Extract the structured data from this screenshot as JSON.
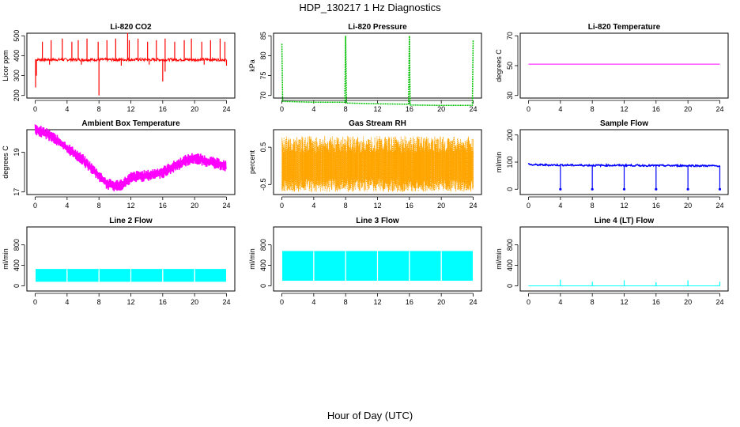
{
  "title": "HDP_130217  1 Hz Diagnostics",
  "xlabel": "Hour of Day (UTC)",
  "colors": {
    "red": "#ff0000",
    "green": "#00c000",
    "magenta": "#ff00ff",
    "orange": "#ffa500",
    "blue": "#0000ff",
    "cyan": "#00ffff"
  },
  "chart_data": [
    {
      "type": "line",
      "title": "Li-820 CO2",
      "ylabel": "Licor ppm",
      "xlim": [
        0,
        24
      ],
      "ylim": [
        200,
        500
      ],
      "xticks": [
        0,
        4,
        8,
        12,
        16,
        20,
        24
      ],
      "yticks": [
        200,
        300,
        400,
        500
      ],
      "color": "#ff0000",
      "style": "co2",
      "series": [
        {
          "x": [
            0,
            0.1,
            0.2,
            1,
            2,
            3,
            4,
            5,
            6,
            7,
            8,
            9,
            10,
            11,
            11.6,
            12,
            13,
            14,
            15,
            16,
            17,
            18,
            19,
            20,
            21,
            22,
            23,
            23.9,
            24
          ],
          "y": [
            380,
            230,
            380,
            380,
            385,
            380,
            382,
            380,
            383,
            380,
            380,
            381,
            382,
            380,
            515,
            380,
            381,
            380,
            382,
            380,
            381,
            380,
            382,
            380,
            381,
            380,
            382,
            370,
            380
          ]
        }
      ]
    },
    {
      "type": "line",
      "title": "Li-820 Pressure",
      "ylabel": "kPa",
      "xlim": [
        0,
        24
      ],
      "ylim": [
        70,
        85
      ],
      "xticks": [
        0,
        4,
        8,
        12,
        16,
        20,
        24
      ],
      "yticks": [
        70,
        75,
        80,
        85
      ],
      "color": "#00c000",
      "style": "pressure",
      "series": [
        {
          "x": [
            0,
            0.1,
            4,
            7.9,
            8.0,
            8.1,
            12,
            15.9,
            16.0,
            16.1,
            20,
            23.9,
            24
          ],
          "y": [
            83,
            68.5,
            68.3,
            68.3,
            85,
            68.1,
            67.9,
            67.8,
            85,
            67.6,
            67.5,
            67.5,
            84
          ]
        }
      ]
    },
    {
      "type": "line",
      "title": "Li-820 Temperature",
      "ylabel": "degrees C",
      "xlim": [
        0,
        24
      ],
      "ylim": [
        30,
        70
      ],
      "xticks": [
        0,
        4,
        8,
        12,
        16,
        20,
        24
      ],
      "yticks": [
        30,
        50,
        70
      ],
      "color": "#ff00ff",
      "style": "line",
      "series": [
        {
          "x": [
            0,
            24
          ],
          "y": [
            51,
            51
          ]
        }
      ]
    },
    {
      "type": "line",
      "title": "Ambient Box Temperature",
      "ylabel": "degrees C",
      "xlim": [
        0,
        24
      ],
      "ylim": [
        17,
        20
      ],
      "xticks": [
        0,
        4,
        8,
        12,
        16,
        20,
        24
      ],
      "yticks": [
        17,
        19
      ],
      "color": "#ff00ff",
      "style": "band",
      "band": 0.3,
      "series": [
        {
          "x": [
            0,
            1,
            2,
            3,
            4,
            5,
            6,
            7,
            8,
            9,
            10,
            11,
            12,
            13,
            14,
            15,
            16,
            17,
            18,
            19,
            20,
            21,
            22,
            23,
            24
          ],
          "y": [
            20.1,
            20.0,
            19.8,
            19.5,
            19.2,
            18.9,
            18.6,
            18.2,
            17.8,
            17.4,
            17.3,
            17.4,
            17.7,
            17.8,
            17.8,
            17.9,
            18.0,
            18.2,
            18.4,
            18.6,
            18.7,
            18.6,
            18.5,
            18.4,
            18.3
          ]
        }
      ]
    },
    {
      "type": "line",
      "title": "Gas Stream RH",
      "ylabel": "percent",
      "xlim": [
        0,
        24
      ],
      "ylim": [
        -0.7,
        0.9
      ],
      "xticks": [
        0,
        4,
        8,
        12,
        16,
        20,
        24
      ],
      "yticks": [
        -0.5,
        0.5
      ],
      "color": "#ffa500",
      "style": "noise",
      "series": [
        {
          "x": [
            0,
            24
          ],
          "y": [
            -0.7,
            0.8
          ]
        }
      ]
    },
    {
      "type": "line",
      "title": "Sample Flow",
      "ylabel": "ml/min",
      "xlim": [
        0,
        24
      ],
      "ylim": [
        -10,
        210
      ],
      "xticks": [
        0,
        4,
        8,
        12,
        16,
        20,
        24
      ],
      "yticks": [
        0,
        100,
        200
      ],
      "color": "#0000ff",
      "style": "flowdips",
      "series": [
        {
          "x": [
            0,
            0.2,
            4,
            8,
            12,
            16,
            20,
            24
          ],
          "y": [
            95,
            90,
            89,
            88,
            88,
            87,
            87,
            86
          ]
        }
      ],
      "dips": [
        4,
        8,
        12,
        16,
        20,
        24
      ]
    },
    {
      "type": "area",
      "title": "Line 2 Flow",
      "ylabel": "ml/min",
      "xlim": [
        0,
        24
      ],
      "ylim": [
        -50,
        1100
      ],
      "xticks": [
        0,
        4,
        8,
        12,
        16,
        20,
        24
      ],
      "yticks": [
        0,
        400,
        800
      ],
      "color": "#00ffff",
      "style": "block",
      "series": [
        {
          "x": [
            0,
            24
          ],
          "y": [
            80,
            330
          ]
        }
      ],
      "gaps": [
        4,
        8,
        12,
        16,
        20
      ]
    },
    {
      "type": "area",
      "title": "Line 3 Flow",
      "ylabel": "ml/min",
      "xlim": [
        0,
        24
      ],
      "ylim": [
        -50,
        1100
      ],
      "xticks": [
        0,
        4,
        8,
        12,
        16,
        20,
        24
      ],
      "yticks": [
        0,
        400,
        800
      ],
      "color": "#00ffff",
      "style": "block",
      "series": [
        {
          "x": [
            0,
            24
          ],
          "y": [
            100,
            680
          ]
        }
      ],
      "gaps": [
        4,
        8,
        12,
        16,
        20
      ]
    },
    {
      "type": "line",
      "title": "Line 4 (LT) Flow",
      "ylabel": "ml/min",
      "xlim": [
        0,
        24
      ],
      "ylim": [
        -50,
        1100
      ],
      "xticks": [
        0,
        4,
        8,
        12,
        16,
        20,
        24
      ],
      "yticks": [
        0,
        400,
        800
      ],
      "color": "#00ffff",
      "style": "spikes",
      "series": [
        {
          "x": [
            0,
            24
          ],
          "y": [
            0,
            0
          ]
        }
      ],
      "spikes": [
        {
          "x": 4,
          "y": 120
        },
        {
          "x": 8,
          "y": 80
        },
        {
          "x": 12,
          "y": 110
        },
        {
          "x": 16,
          "y": 70
        },
        {
          "x": 20,
          "y": 110
        },
        {
          "x": 24,
          "y": 80
        }
      ]
    }
  ]
}
